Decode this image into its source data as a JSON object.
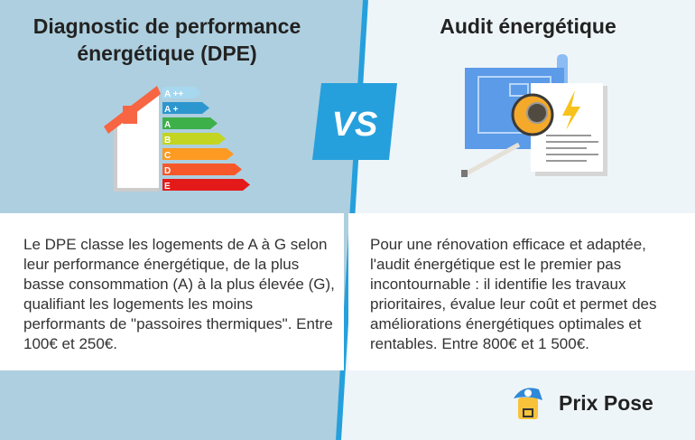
{
  "left": {
    "title_line1": "Diagnostic de performance",
    "title_line2": "énergétique (DPE)",
    "labels": [
      "A ++",
      "A +",
      "A",
      "B",
      "C",
      "D",
      "E"
    ],
    "text": "Le DPE classe les logements de A à G selon leur performance énergétique, de la plus basse consommation (A) à la plus élevée (G), qualifiant les logements les moins performants de \"passoires thermiques\". Entre 100€ et 250€."
  },
  "vs": "VS",
  "right": {
    "title": "Audit énergétique",
    "text": "Pour une rénovation efficace et adaptée, l'audit énergétique est le premier pas incontournable : il identifie les travaux prioritaires, évalue leur coût et permet des améliorations énergétiques optimales et rentables. Entre 800€ et 1 500€."
  },
  "brand": "Prix Pose",
  "colors": {
    "left_bg": "#aecfdf",
    "right_bg": "#eef5f9",
    "accent": "#26a0dc",
    "labels": [
      "#a6d8ef",
      "#2c96cf",
      "#3db049",
      "#c3d520",
      "#fd9a22",
      "#f7582a",
      "#e41919"
    ]
  }
}
